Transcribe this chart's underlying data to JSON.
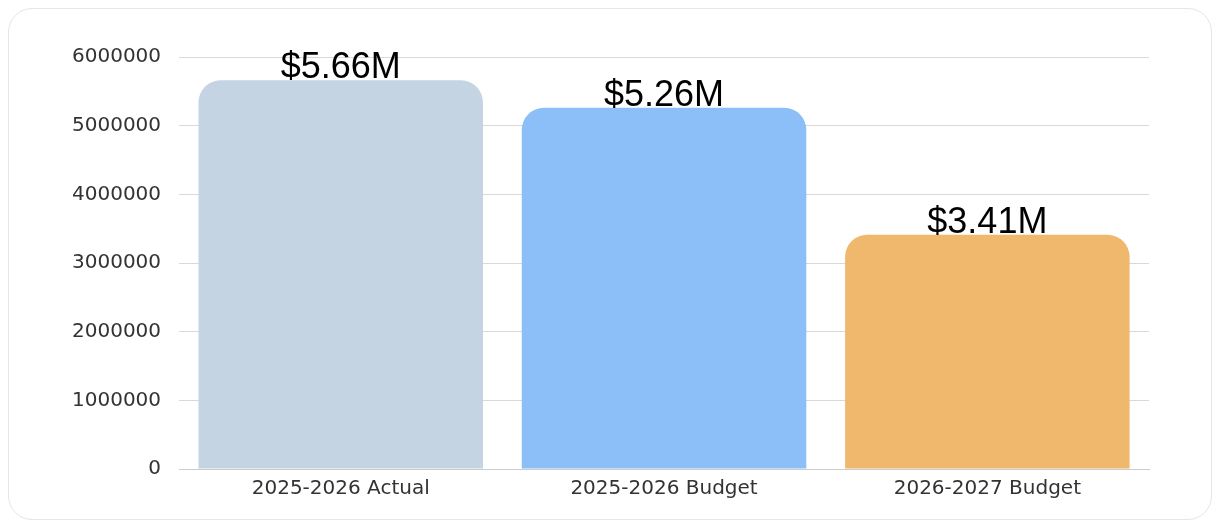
{
  "chart_data": {
    "type": "bar",
    "categories": [
      "2025-2026 Actual",
      "2025-2026 Budget",
      "2026-2027 Budget"
    ],
    "values": [
      5660000,
      5260000,
      3410000
    ],
    "colors": [
      "#c5d4e3",
      "#8cbef8",
      "#f0b86c"
    ],
    "value_labels": [
      "$5.66M",
      "$5.26M",
      "$3.41M"
    ],
    "ylim": [
      0,
      6000000
    ],
    "yticks": [
      0,
      1000000,
      2000000,
      3000000,
      4000000,
      5000000,
      6000000
    ],
    "grid": "y",
    "legend": false
  }
}
